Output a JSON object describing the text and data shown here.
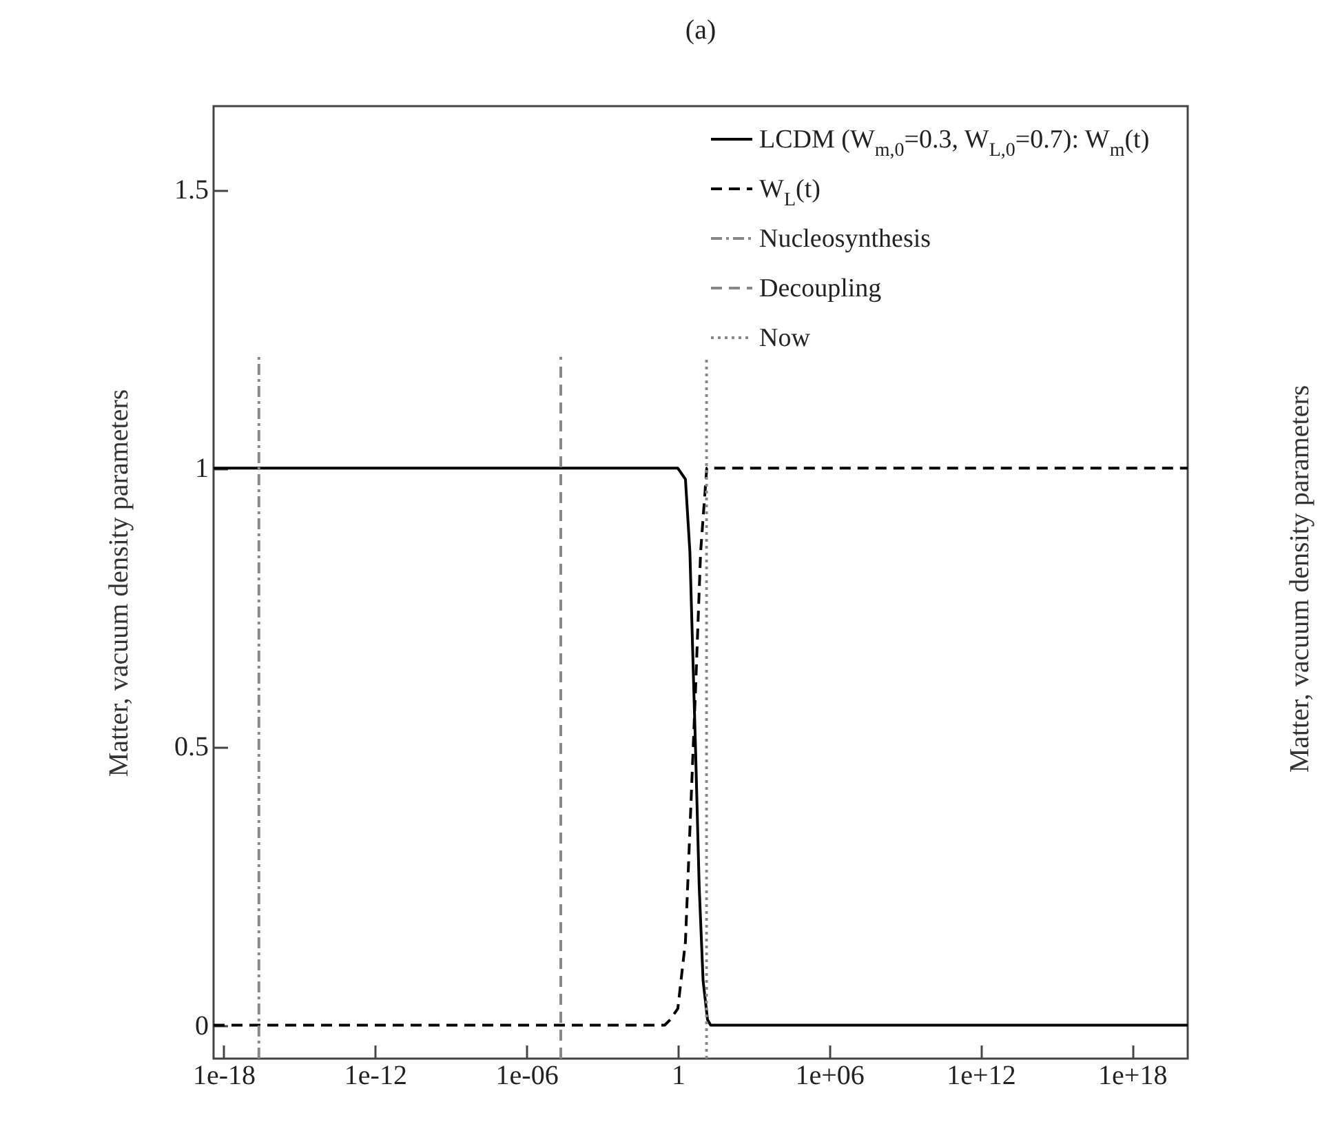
{
  "chart_data": {
    "type": "line",
    "title": "(a)",
    "ylabel": "Matter, vacuum density parameters",
    "annotations": [
      "Matter, vacuum density parameters"
    ],
    "xlim": [
      4e-19,
      1.6e+20
    ],
    "ylim": [
      -0.06,
      1.65
    ],
    "xticks": [
      {
        "value": 1e-18,
        "label": "1e-18"
      },
      {
        "value": 1e-12,
        "label": "1e-12"
      },
      {
        "value": 1e-06,
        "label": "1e-06"
      },
      1,
      {
        "value": 1000000.0,
        "label": "1e+06"
      },
      {
        "value": 1000000000000.0,
        "label": "1e+12"
      },
      {
        "value": 1e+18,
        "label": "1e+18"
      }
    ],
    "yticks": [
      0,
      0.5,
      1,
      1.5
    ],
    "log": "x",
    "grid": false,
    "legend": "top right",
    "marker": "none",
    "series": [
      {
        "name": "LCDM (W$_{m,0}$=0.3, W$_{L,0}$=0.7): W$_{m}$(t)",
        "color": "#000000",
        "line_style": "solid",
        "x": [
          4e-19,
          0.1,
          1,
          2,
          3,
          4,
          5,
          7,
          10,
          15,
          20,
          1.6e+20
        ],
        "values": [
          1,
          1,
          1,
          0.98,
          0.85,
          0.65,
          0.5,
          0.25,
          0.08,
          0.01,
          0,
          0
        ]
      },
      {
        "name": "W$_{L}$(t)",
        "color": "#000000",
        "line_style": "dashed",
        "x": [
          4e-19,
          0.3,
          0.5,
          1,
          2,
          3,
          5,
          8,
          14,
          1.6e+20
        ],
        "values": [
          0,
          0,
          0.01,
          0.03,
          0.15,
          0.35,
          0.6,
          0.85,
          1,
          1
        ]
      },
      {
        "name": "Nucleosynthesis",
        "color": "#888888",
        "line_style": "dashdot",
        "x": [
          2.5e-17,
          2.5e-17
        ],
        "values": [
          -0.06,
          1.2
        ]
      },
      {
        "name": "Decoupling",
        "color": "#888888",
        "line_style": "dashed",
        "x": [
          2.3e-05,
          2.3e-05
        ],
        "values": [
          -0.06,
          1.2
        ]
      },
      {
        "name": "Now",
        "color": "#888888",
        "line_style": "dotted",
        "x": [
          13.7,
          13.7
        ],
        "values": [
          -0.06,
          1.2
        ]
      }
    ]
  }
}
